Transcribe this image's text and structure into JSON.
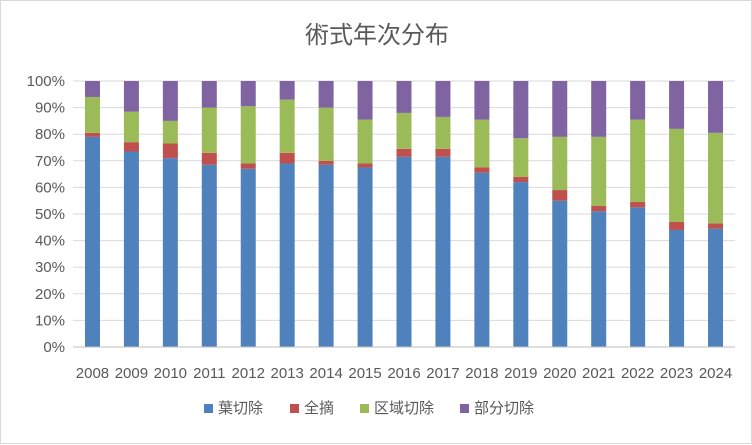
{
  "chart_data": {
    "type": "bar",
    "stacked": "percent",
    "title": "術式年次分布",
    "xlabel": "",
    "ylabel": "",
    "ylim": [
      0,
      100
    ],
    "y_ticks": [
      "0%",
      "10%",
      "20%",
      "30%",
      "40%",
      "50%",
      "60%",
      "70%",
      "80%",
      "90%",
      "100%"
    ],
    "grid": true,
    "legend_position": "bottom",
    "categories": [
      "2008",
      "2009",
      "2010",
      "2011",
      "2012",
      "2013",
      "2014",
      "2015",
      "2016",
      "2017",
      "2018",
      "2019",
      "2020",
      "2021",
      "2022",
      "2023",
      "2024"
    ],
    "series": [
      {
        "name": "葉切除",
        "color": "#4f81bd",
        "values": [
          79,
          73.5,
          71,
          68.5,
          67,
          69,
          68.5,
          67.5,
          71.5,
          71.5,
          65.5,
          62,
          55,
          51,
          52.5,
          44,
          44.5
        ]
      },
      {
        "name": "全摘",
        "color": "#c0504d",
        "values": [
          1.5,
          3.5,
          5.5,
          4.5,
          2,
          4,
          1.5,
          1.5,
          3,
          3,
          2,
          2,
          4,
          2,
          2,
          3,
          2
        ]
      },
      {
        "name": "区域切除",
        "color": "#9bbb59",
        "values": [
          13.5,
          11.5,
          8.5,
          17,
          21.5,
          20,
          20,
          16.5,
          13.5,
          12,
          18,
          14.5,
          20,
          26,
          31,
          35,
          34
        ]
      },
      {
        "name": "部分切除",
        "color": "#8064a2",
        "values": [
          6,
          11.5,
          15,
          10,
          9.5,
          7,
          10,
          14.5,
          12,
          13.5,
          14.5,
          21.5,
          21,
          21,
          14.5,
          18,
          19.5
        ]
      }
    ]
  }
}
